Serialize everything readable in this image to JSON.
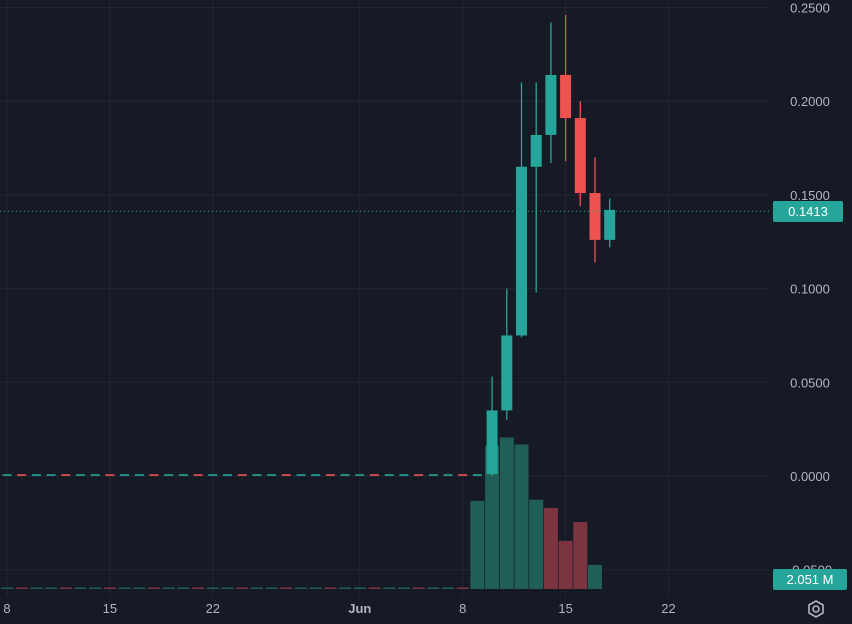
{
  "colors": {
    "background": "#161a25",
    "grid": "#232632",
    "axis_text": "#b2b5be",
    "up": "#26a69a",
    "down": "#ef5350",
    "volume_up": "#1f5f57",
    "volume_down": "#7a3540",
    "price_line": "#26a69a",
    "badge_text": "#ffffff"
  },
  "price_badge": "0.1413",
  "volume_badge": "2.051 M",
  "settings_icon": "gear-icon",
  "chart_data": {
    "type": "candlestick",
    "y_axis": {
      "ticks": [
        "0.2500",
        "0.2000",
        "0.1500",
        "0.1000",
        "0.0500",
        "0.0000",
        "-0.0500"
      ],
      "range": [
        -0.05,
        0.25
      ]
    },
    "x_axis": {
      "ticks": [
        {
          "label": "8",
          "day": 8
        },
        {
          "label": "15",
          "day": 15
        },
        {
          "label": "22",
          "day": 22
        },
        {
          "label": "Jun",
          "day": 32
        },
        {
          "label": "8",
          "day": 39
        },
        {
          "label": "15",
          "day": 46
        },
        {
          "label": "22",
          "day": 53
        }
      ]
    },
    "last_price": 0.1413,
    "flat_period": {
      "from_day": 1,
      "to_day": 40,
      "price": 0.0004
    },
    "candles": [
      {
        "day": 41,
        "open": 0.001,
        "high": 0.053,
        "low": 0.0,
        "close": 0.035
      },
      {
        "day": 42,
        "open": 0.035,
        "high": 0.1,
        "low": 0.03,
        "close": 0.075
      },
      {
        "day": 43,
        "open": 0.075,
        "high": 0.21,
        "low": 0.074,
        "close": 0.165
      },
      {
        "day": 44,
        "open": 0.165,
        "high": 0.21,
        "low": 0.098,
        "close": 0.182
      },
      {
        "day": 45,
        "open": 0.182,
        "high": 0.242,
        "low": 0.167,
        "close": 0.214
      },
      {
        "day": 46,
        "open": 0.214,
        "high": 0.246,
        "low": 0.168,
        "close": 0.191
      },
      {
        "day": 47,
        "open": 0.191,
        "high": 0.2,
        "low": 0.144,
        "close": 0.151
      },
      {
        "day": 48,
        "open": 0.151,
        "high": 0.17,
        "low": 0.114,
        "close": 0.126
      },
      {
        "day": 49,
        "open": 0.126,
        "high": 0.148,
        "low": 0.122,
        "close": 0.142
      }
    ],
    "volume": [
      {
        "day": 40,
        "value": 7.5,
        "dir": "up"
      },
      {
        "day": 41,
        "value": 12.2,
        "dir": "up"
      },
      {
        "day": 42,
        "value": 12.9,
        "dir": "up"
      },
      {
        "day": 43,
        "value": 12.3,
        "dir": "up"
      },
      {
        "day": 44,
        "value": 7.6,
        "dir": "up"
      },
      {
        "day": 45,
        "value": 6.9,
        "dir": "down"
      },
      {
        "day": 46,
        "value": 4.1,
        "dir": "down"
      },
      {
        "day": 47,
        "value": 5.7,
        "dir": "down"
      },
      {
        "day": 48,
        "value": 2.051,
        "dir": "up"
      }
    ]
  }
}
